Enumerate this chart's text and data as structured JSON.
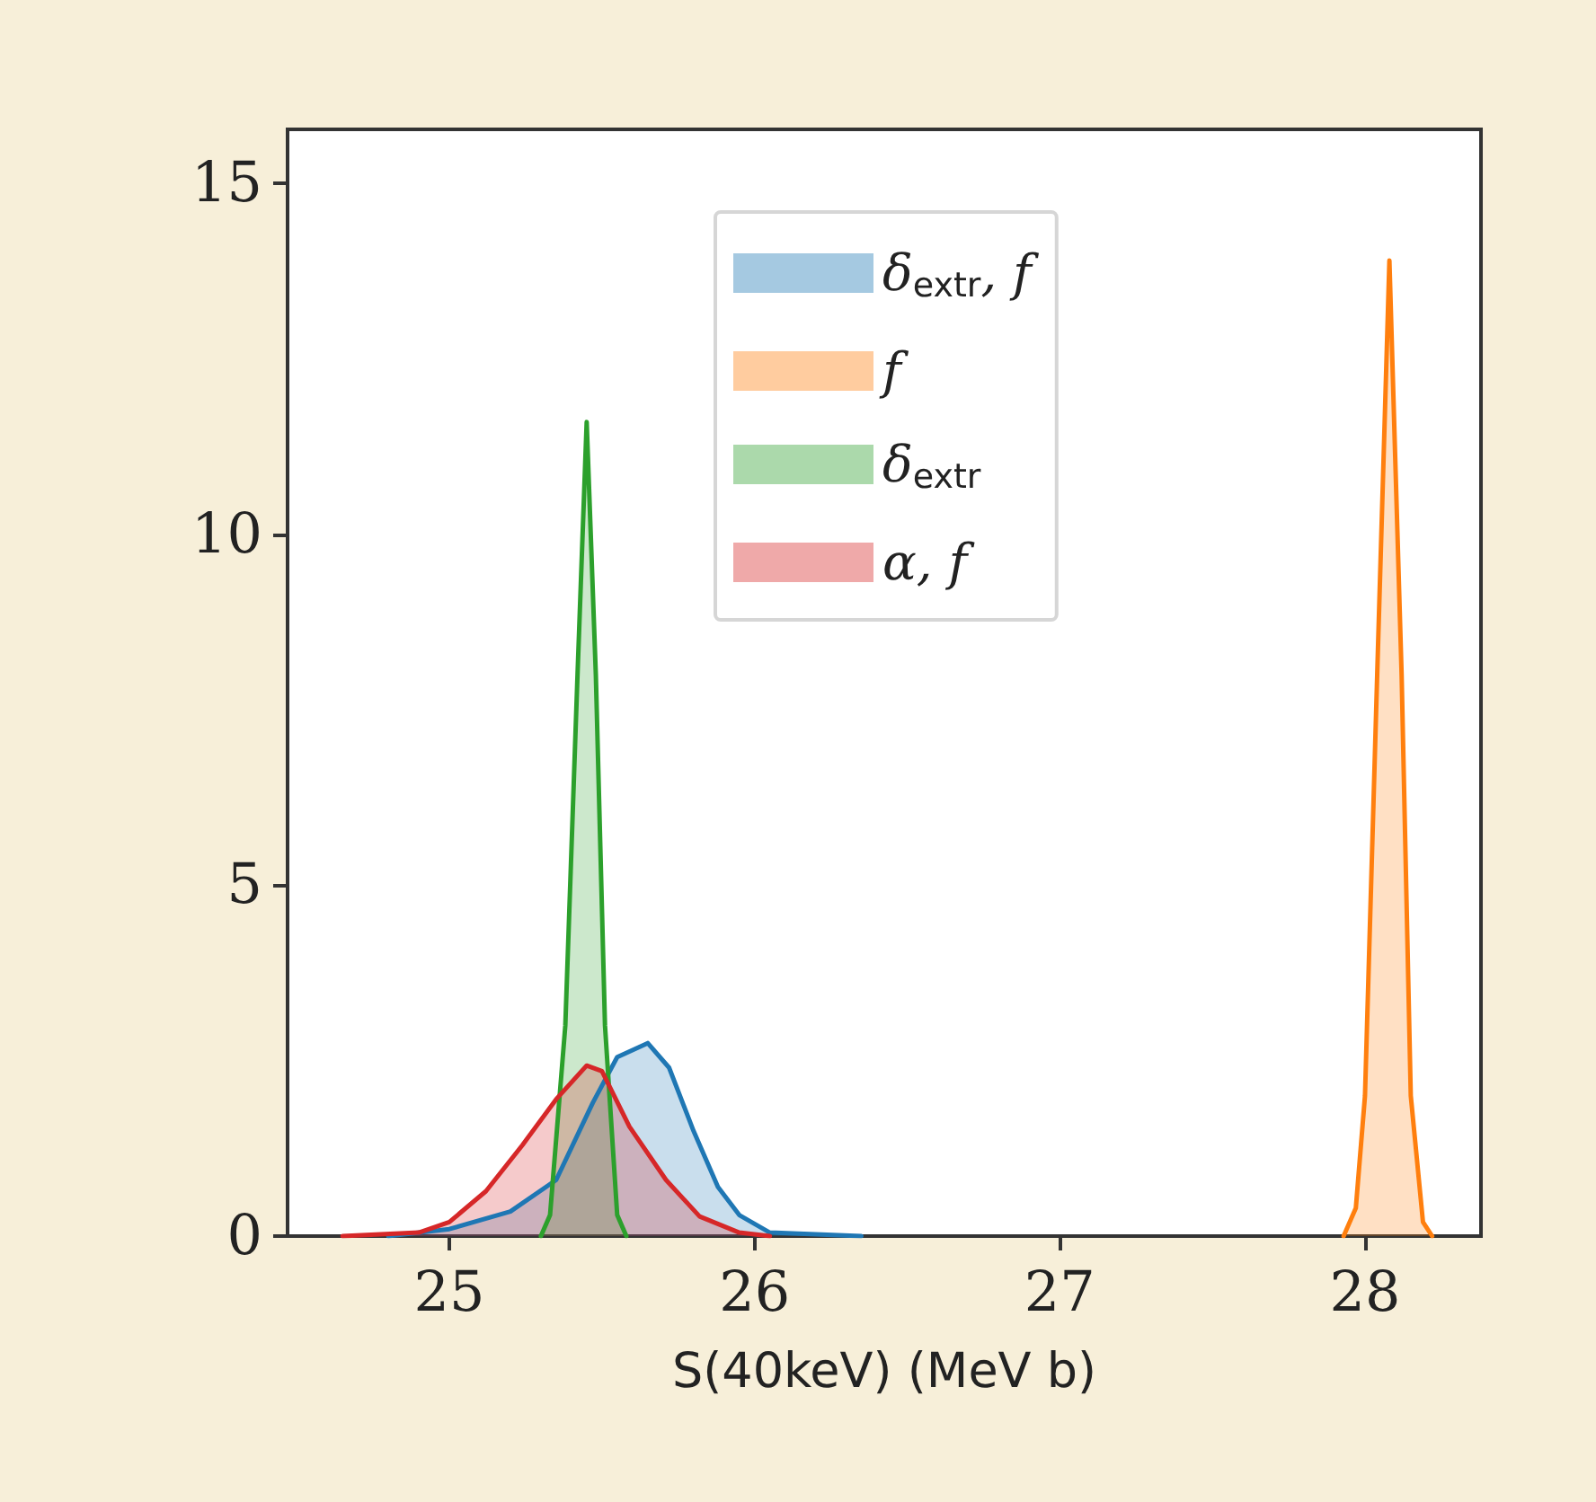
{
  "chart_data": {
    "type": "area",
    "xlabel": "S(40keV) (MeV b)",
    "xlim": [
      24.47,
      28.38
    ],
    "xticks": [
      25,
      26,
      27,
      28
    ],
    "ylim": [
      0,
      15.77
    ],
    "yticks": [
      0,
      5,
      10,
      15
    ],
    "grid": false,
    "legend": "top",
    "marker": "none",
    "line_style": "solid",
    "series": [
      {
        "name": "δ$_{extr}$, f",
        "color": "#1f77b4",
        "x": [
          24.8,
          25.0,
          25.2,
          25.35,
          25.47,
          25.55,
          25.65,
          25.72,
          25.8,
          25.88,
          25.95,
          26.05,
          26.35
        ],
        "values": [
          0,
          0.1,
          0.35,
          0.8,
          1.9,
          2.55,
          2.75,
          2.4,
          1.5,
          0.7,
          0.3,
          0.05,
          0
        ]
      },
      {
        "name": "f",
        "color": "#ff7f0e",
        "x": [
          27.93,
          27.97,
          28.0,
          28.04,
          28.08,
          28.12,
          28.15,
          28.19,
          28.22
        ],
        "values": [
          0,
          0.4,
          2,
          8,
          13.9,
          8,
          2,
          0.2,
          0
        ]
      },
      {
        "name": "δ$_{extr}$",
        "color": "#2ca02c",
        "x": [
          25.3,
          25.33,
          25.38,
          25.42,
          25.45,
          25.48,
          25.51,
          25.55,
          25.58
        ],
        "values": [
          0,
          0.3,
          3,
          8,
          11.6,
          8,
          3,
          0.3,
          0
        ]
      },
      {
        "name": "α, f",
        "color": "#d62728",
        "x": [
          24.65,
          24.9,
          25.0,
          25.12,
          25.24,
          25.35,
          25.45,
          25.5,
          25.59,
          25.71,
          25.82,
          25.95,
          26.05
        ],
        "values": [
          0,
          0.05,
          0.2,
          0.64,
          1.3,
          1.95,
          2.43,
          2.35,
          1.56,
          0.8,
          0.28,
          0.05,
          0
        ]
      }
    ]
  }
}
